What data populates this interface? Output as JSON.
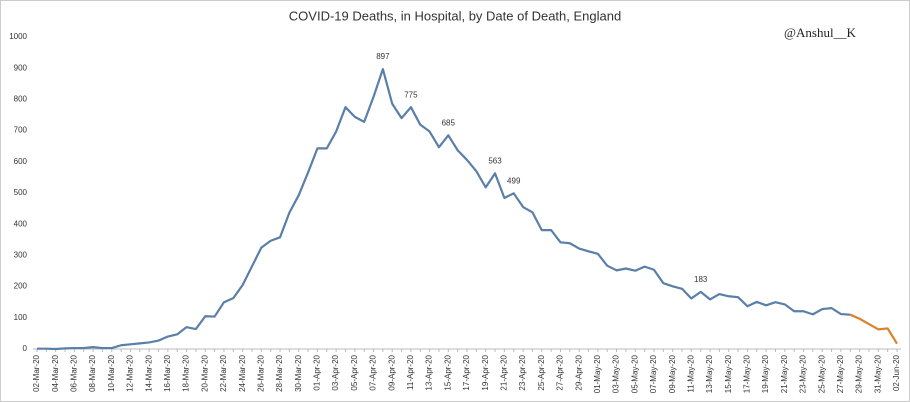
{
  "chart_data": {
    "type": "line",
    "title": "COVID-19 Deaths, in Hospital, by Date of Death, England",
    "annotation": "@Anshul__K",
    "categories": [
      "02-Mar-20",
      null,
      "04-Mar-20",
      null,
      "06-Mar-20",
      null,
      "08-Mar-20",
      null,
      "10-Mar-20",
      null,
      "12-Mar-20",
      null,
      "14-Mar-20",
      null,
      "16-Mar-20",
      null,
      "18-Mar-20",
      null,
      "20-Mar-20",
      null,
      "22-Mar-20",
      null,
      "24-Mar-20",
      null,
      "26-Mar-20",
      null,
      "28-Mar-20",
      null,
      "30-Mar-20",
      null,
      "01-Apr-20",
      null,
      "03-Apr-20",
      null,
      "05-Apr-20",
      null,
      "07-Apr-20",
      null,
      "09-Apr-20",
      null,
      "11-Apr-20",
      null,
      "13-Apr-20",
      null,
      "15-Apr-20",
      null,
      "17-Apr-20",
      null,
      "19-Apr-20",
      null,
      "21-Apr-20",
      null,
      "23-Apr-20",
      null,
      "25-Apr-20",
      null,
      "27-Apr-20",
      null,
      "29-Apr-20",
      null,
      "01-May-20",
      null,
      "03-May-20",
      null,
      "05-May-20",
      null,
      "07-May-20",
      null,
      "09-May-20",
      null,
      "11-May-20",
      null,
      "13-May-20",
      null,
      "15-May-20",
      null,
      "17-May-20",
      null,
      "19-May-20",
      null,
      "21-May-20",
      null,
      "23-May-20",
      null,
      "25-May-20",
      null,
      "27-May-20",
      null,
      "29-May-20",
      null,
      "31-May-20",
      null,
      "02-Jun-20"
    ],
    "series": [
      {
        "color": "#5a7fa8",
        "values": [
          1,
          1,
          0,
          2,
          3,
          3,
          6,
          3,
          3,
          12,
          15,
          18,
          21,
          27,
          40,
          47,
          70,
          64,
          105,
          104,
          150,
          163,
          205,
          265,
          325,
          347,
          358,
          437,
          493,
          566,
          643,
          643,
          697,
          775,
          744,
          728,
          808,
          897,
          786,
          740,
          775,
          719,
          697,
          647,
          685,
          637,
          606,
          570,
          518,
          563,
          484,
          499,
          455,
          438,
          381,
          381,
          342,
          339,
          322,
          313,
          305,
          267,
          252,
          258,
          251,
          264,
          254,
          211,
          201,
          193,
          162,
          183,
          159,
          176,
          169,
          166,
          137,
          151,
          140,
          150,
          143,
          121,
          121,
          111,
          128,
          131,
          112,
          110,
          null,
          null,
          null,
          null,
          null
        ]
      },
      {
        "color": "#d9822b",
        "values": [
          null,
          null,
          null,
          null,
          null,
          null,
          null,
          null,
          null,
          null,
          null,
          null,
          null,
          null,
          null,
          null,
          null,
          null,
          null,
          null,
          null,
          null,
          null,
          null,
          null,
          null,
          null,
          null,
          null,
          null,
          null,
          null,
          null,
          null,
          null,
          null,
          null,
          null,
          null,
          null,
          null,
          null,
          null,
          null,
          null,
          null,
          null,
          null,
          null,
          null,
          null,
          null,
          null,
          null,
          null,
          null,
          null,
          null,
          null,
          null,
          null,
          null,
          null,
          null,
          null,
          null,
          null,
          null,
          null,
          null,
          null,
          null,
          null,
          null,
          null,
          null,
          null,
          null,
          null,
          null,
          null,
          null,
          null,
          null,
          null,
          null,
          null,
          110,
          97,
          80,
          63,
          66,
          17
        ]
      }
    ],
    "labeled_points": [
      37,
      40,
      44,
      49,
      51,
      71
    ],
    "ylim": [
      0,
      1000
    ],
    "yticks": [
      0,
      100,
      200,
      300,
      400,
      500,
      600,
      700,
      800,
      900,
      1000
    ],
    "grid": false
  }
}
